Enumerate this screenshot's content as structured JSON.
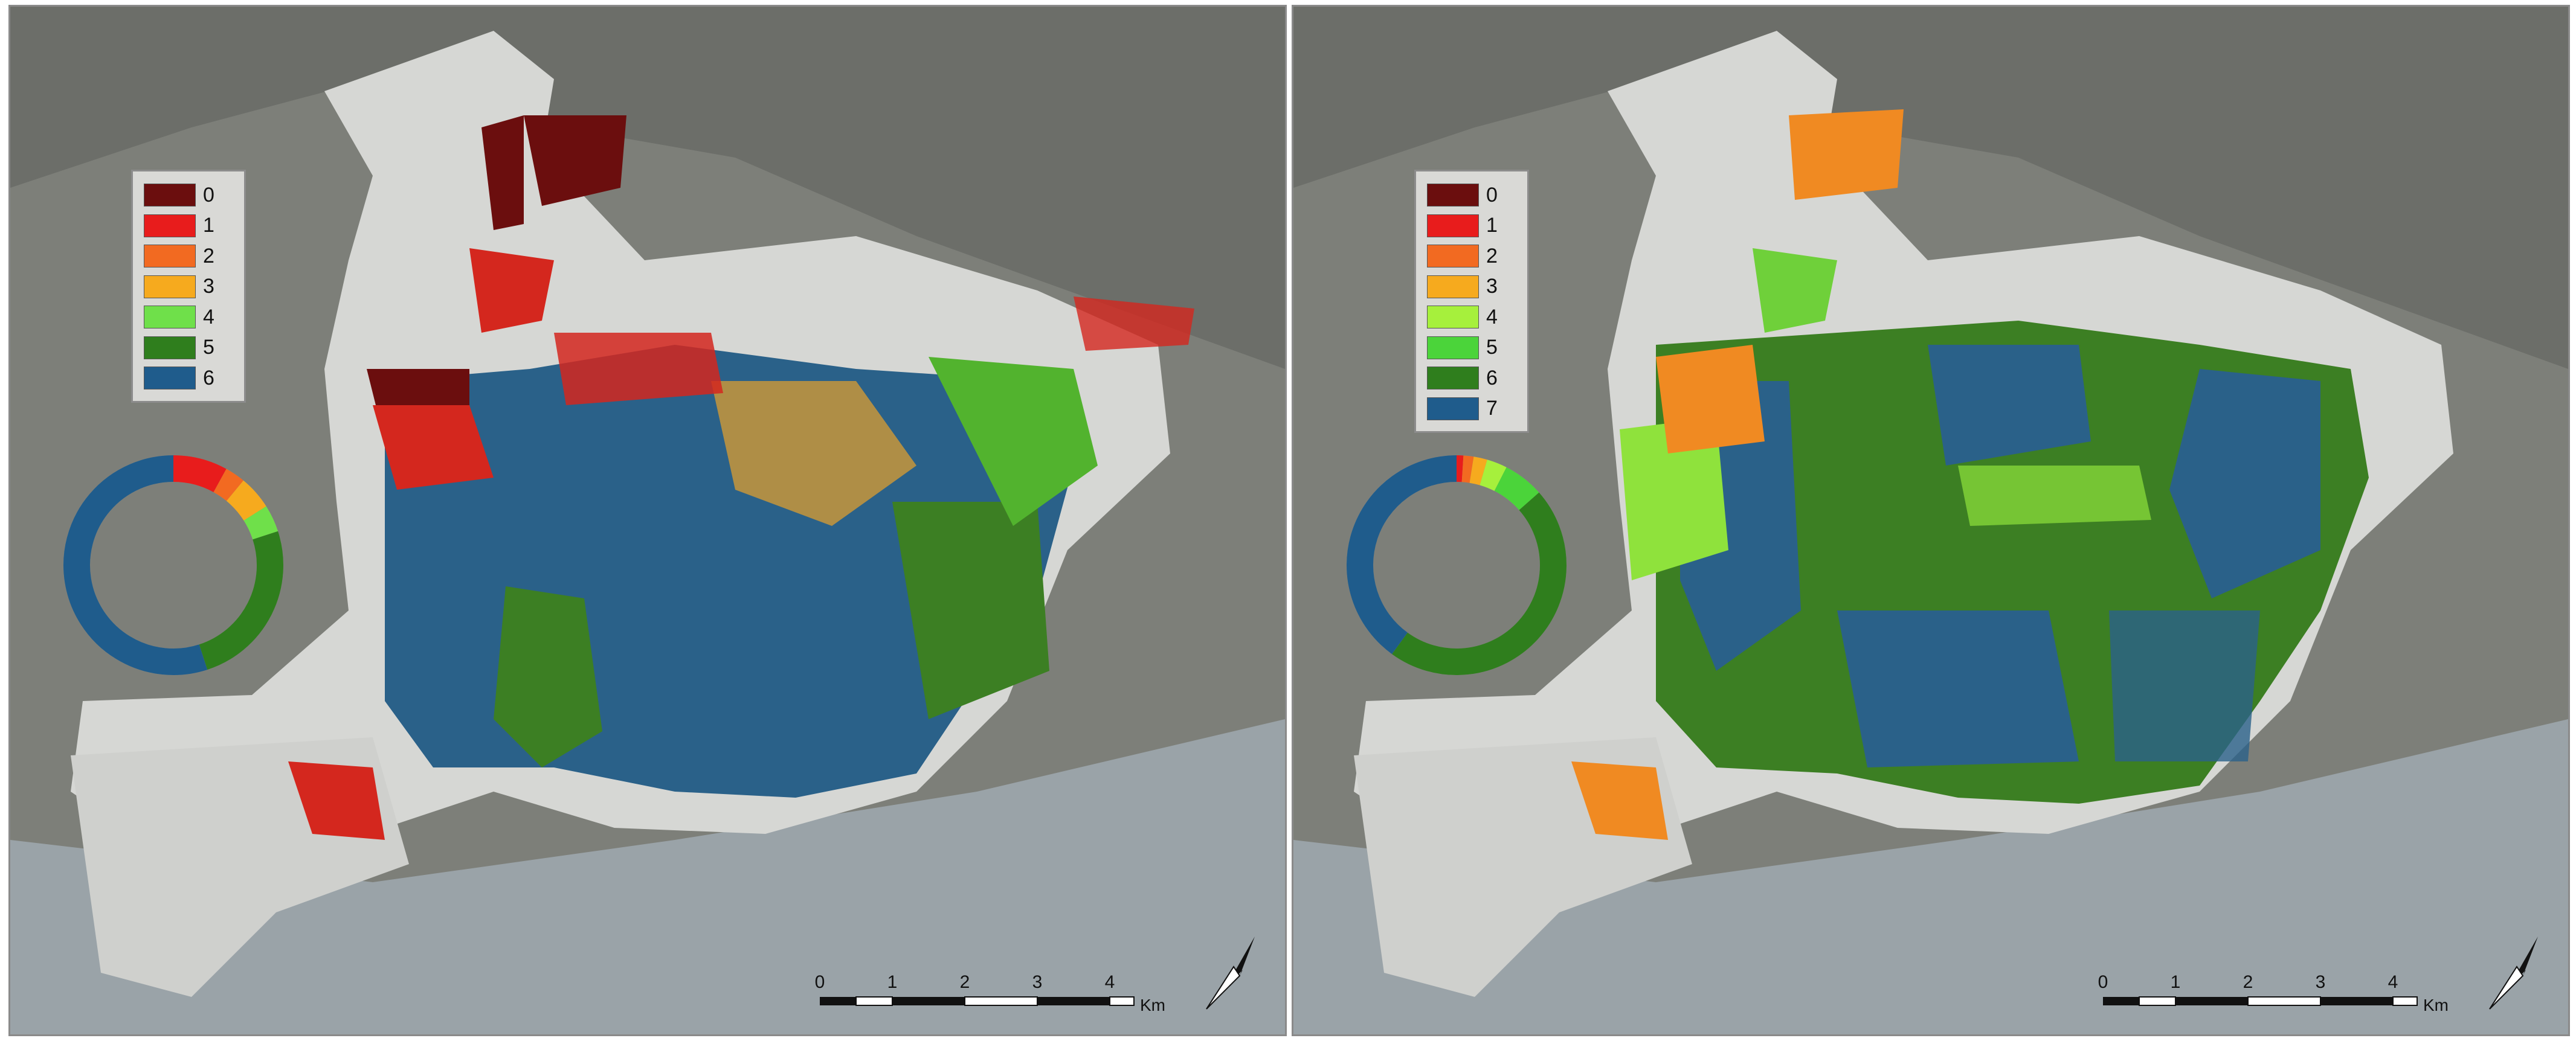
{
  "panels": [
    {
      "legend": [
        {
          "label": "0",
          "color": "#6b0e0e"
        },
        {
          "label": "1",
          "color": "#e81c1c"
        },
        {
          "label": "2",
          "color": "#f26a21"
        },
        {
          "label": "3",
          "color": "#f6aa1e"
        },
        {
          "label": "4",
          "color": "#6fe04a"
        },
        {
          "label": "5",
          "color": "#2f7e1d"
        },
        {
          "label": "6",
          "color": "#1f5c8c"
        }
      ],
      "donut": [
        {
          "class": "0",
          "fraction": 0.0
        },
        {
          "class": "1",
          "fraction": 0.08
        },
        {
          "class": "2",
          "fraction": 0.03
        },
        {
          "class": "3",
          "fraction": 0.05
        },
        {
          "class": "4",
          "fraction": 0.04
        },
        {
          "class": "5",
          "fraction": 0.25
        },
        {
          "class": "6",
          "fraction": 0.55
        }
      ],
      "scale": {
        "ticks": [
          "0",
          "1",
          "2",
          "3",
          "4"
        ],
        "unit": "Km"
      }
    },
    {
      "legend": [
        {
          "label": "0",
          "color": "#6b0e0e"
        },
        {
          "label": "1",
          "color": "#e81c1c"
        },
        {
          "label": "2",
          "color": "#f26a21"
        },
        {
          "label": "3",
          "color": "#f6aa1e"
        },
        {
          "label": "4",
          "color": "#a6f03c"
        },
        {
          "label": "5",
          "color": "#4bd43a"
        },
        {
          "label": "6",
          "color": "#2f7e1d"
        },
        {
          "label": "7",
          "color": "#1f5c8c"
        }
      ],
      "donut": [
        {
          "class": "0",
          "fraction": 0.0
        },
        {
          "class": "1",
          "fraction": 0.01
        },
        {
          "class": "2",
          "fraction": 0.015
        },
        {
          "class": "3",
          "fraction": 0.02
        },
        {
          "class": "4",
          "fraction": 0.03
        },
        {
          "class": "5",
          "fraction": 0.06
        },
        {
          "class": "6",
          "fraction": 0.465
        },
        {
          "class": "7",
          "fraction": 0.4
        }
      ],
      "scale": {
        "ticks": [
          "0",
          "1",
          "2",
          "3",
          "4"
        ],
        "unit": "Km"
      }
    }
  ]
}
